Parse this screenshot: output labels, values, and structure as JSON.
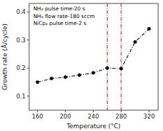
{
  "chart_data": {
    "type": "line",
    "x": [
      160,
      180,
      200,
      220,
      240,
      260,
      280,
      300,
      320
    ],
    "values": [
      0.15,
      0.163,
      0.168,
      0.175,
      0.183,
      0.2,
      0.198,
      0.293,
      0.34
    ],
    "color": "black",
    "marker": "circle",
    "line_style": "dashdot",
    "xlabel": "Temperature (°C)",
    "ylabel": "Growth rate (Å/cycle)",
    "xlim": [
      148,
      333
    ],
    "ylim": [
      0.05,
      0.43
    ],
    "xticks": [
      160,
      200,
      240,
      280,
      320
    ],
    "yticks": [
      0.1,
      0.2,
      0.3,
      0.4
    ],
    "vlines": [
      {
        "x": 260,
        "color": "red",
        "line_style": "dashdot"
      },
      {
        "x": 280,
        "color": "red",
        "line_style": "dashdot"
      }
    ],
    "annotations": [
      "NH₃ pulse time-20 s",
      "NH₃ flow rate-180 sccm",
      "NiCp₂ pulse time-2 s"
    ]
  }
}
